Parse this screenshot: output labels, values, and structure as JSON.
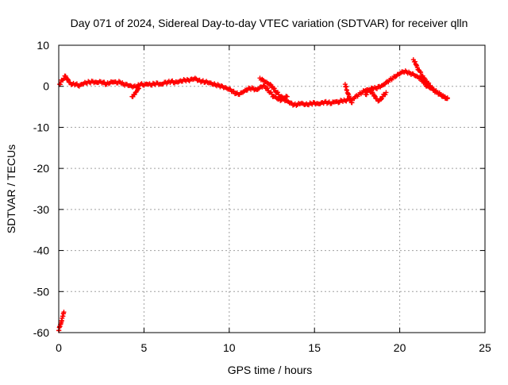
{
  "chart_data": {
    "type": "scatter",
    "title": "Day 071 of 2024, Sidereal Day-to-day VTEC variation (SDTVAR) for receiver qlln",
    "xlabel": "GPS time / hours",
    "ylabel": "SDTVAR / TECUs",
    "xlim": [
      0,
      25
    ],
    "ylim": [
      -60,
      10
    ],
    "xticks": [
      0,
      5,
      10,
      15,
      20,
      25
    ],
    "yticks": [
      10,
      0,
      -10,
      -20,
      -30,
      -40,
      -50,
      -60
    ],
    "grid": true,
    "marker": "plus",
    "series": [
      {
        "name": "SDTVAR",
        "color": "#ff0000",
        "segments": [
          {
            "x": [
              0.0,
              0.05,
              0.1,
              0.15,
              0.2,
              0.25,
              0.3
            ],
            "y": [
              -59.5,
              -58.5,
              -58,
              -57.5,
              -56.5,
              -56,
              -55
            ]
          },
          {
            "x": [
              0.05,
              0.2,
              0.4,
              0.6,
              0.8,
              1.0,
              1.2,
              1.4,
              1.6,
              1.8,
              2.0,
              2.2,
              2.4,
              2.6,
              2.8,
              3.0,
              3.2,
              3.4,
              3.6,
              3.8,
              4.0,
              4.2,
              4.4,
              4.6,
              4.8,
              5.0,
              5.2,
              5.4,
              5.6,
              5.8,
              6.0,
              6.2,
              6.4,
              6.6,
              6.8,
              7.0,
              7.2,
              7.4,
              7.6,
              7.8,
              8.0,
              8.2,
              8.4,
              8.6,
              8.8,
              9.0,
              9.2,
              9.4,
              9.6,
              9.8,
              10.0,
              10.2,
              10.4,
              10.6,
              10.8,
              11.0,
              11.2,
              11.4,
              11.6,
              11.8,
              12.0,
              12.2,
              12.4,
              12.6,
              12.8,
              13.0
            ],
            "y": [
              0.5,
              1.5,
              2.5,
              1.0,
              0.5,
              0.5,
              0.0,
              0.5,
              0.8,
              1.0,
              1.2,
              1.0,
              1.2,
              1.0,
              0.5,
              0.8,
              1.0,
              0.8,
              1.0,
              0.5,
              0.5,
              0.2,
              0.0,
              0.0,
              0.5,
              0.2,
              0.5,
              0.3,
              0.6,
              0.8,
              0.5,
              1.0,
              1.0,
              1.2,
              0.8,
              1.0,
              1.2,
              1.5,
              1.5,
              1.8,
              2.0,
              1.5,
              1.2,
              1.0,
              0.8,
              0.5,
              0.3,
              0.2,
              0.0,
              -0.3,
              -0.6,
              -1.2,
              -1.8,
              -2.0,
              -1.5,
              -1.0,
              -0.5,
              -0.5,
              -0.8,
              -0.2,
              0.2,
              -0.5,
              -1.5,
              -2.5,
              -3.0,
              -3.5
            ]
          },
          {
            "x": [
              4.3,
              4.4,
              4.5,
              4.6,
              4.7
            ],
            "y": [
              -2.5,
              -2.0,
              -1.5,
              -1.0,
              -0.5
            ]
          },
          {
            "x": [
              11.8,
              12.0,
              12.2,
              12.4,
              12.6,
              12.8,
              13.0,
              13.2,
              13.4
            ],
            "y": [
              2.0,
              1.5,
              1.0,
              0.5,
              -0.5,
              -1.5,
              -2.5,
              -3.0,
              -2.5
            ]
          },
          {
            "x": [
              13.0,
              13.2,
              13.4,
              13.6,
              13.8,
              14.0,
              14.2,
              14.4,
              14.6,
              14.8,
              15.0,
              15.2,
              15.4,
              15.6,
              15.8,
              16.0,
              16.2,
              16.4,
              16.6,
              16.8,
              17.0,
              17.2,
              17.4,
              17.6,
              17.8,
              18.0,
              18.2,
              18.4,
              18.6,
              18.8,
              19.0,
              19.2,
              19.4,
              19.6,
              19.8,
              20.0,
              20.2,
              20.4,
              20.6,
              20.8,
              21.0,
              21.2,
              21.4,
              21.6,
              21.8,
              22.0,
              22.2,
              22.4,
              22.6,
              22.8
            ],
            "y": [
              -3.0,
              -3.2,
              -3.5,
              -4.0,
              -4.5,
              -4.5,
              -4.2,
              -4.5,
              -4.5,
              -4.2,
              -4.0,
              -4.2,
              -4.0,
              -3.8,
              -4.0,
              -4.2,
              -3.8,
              -4.0,
              -3.5,
              -3.5,
              -3.0,
              -3.2,
              -2.5,
              -2.0,
              -1.5,
              -1.0,
              -1.0,
              -0.5,
              -0.5,
              0.0,
              0.3,
              1.0,
              1.5,
              2.0,
              2.5,
              3.0,
              3.5,
              3.5,
              3.2,
              3.0,
              2.5,
              2.0,
              1.0,
              0.0,
              -0.5,
              -1.0,
              -1.5,
              -2.0,
              -2.5,
              -3.0
            ]
          },
          {
            "x": [
              16.8,
              16.9,
              17.0,
              17.1,
              17.2
            ],
            "y": [
              0.5,
              -1.0,
              -2.0,
              -3.0,
              -4.0
            ]
          },
          {
            "x": [
              18.0,
              18.2,
              18.4,
              18.6,
              18.8,
              19.0,
              19.2
            ],
            "y": [
              -2.0,
              -1.0,
              -1.5,
              -3.0,
              -3.5,
              -2.5,
              -1.5
            ]
          },
          {
            "x": [
              20.8,
              20.9,
              21.0,
              21.1,
              21.2,
              21.3,
              21.4,
              21.6,
              21.8,
              22.0,
              22.2,
              22.4,
              22.6,
              22.8
            ],
            "y": [
              6.5,
              6.0,
              5.0,
              4.0,
              3.5,
              2.5,
              2.0,
              1.0,
              0.0,
              -1.0,
              -1.5,
              -2.0,
              -2.5,
              -2.8
            ]
          }
        ]
      }
    ]
  }
}
